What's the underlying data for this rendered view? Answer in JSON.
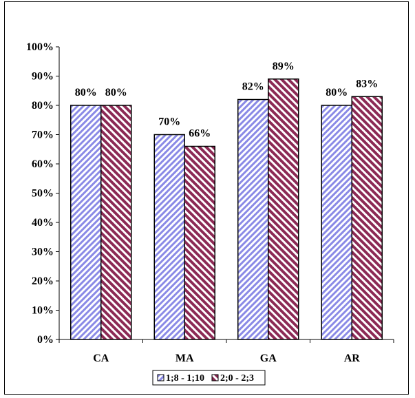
{
  "chart_data": {
    "type": "bar",
    "categories": [
      "CA",
      "MA",
      "GA",
      "AR"
    ],
    "series": [
      {
        "name": "1;8 - 1;10",
        "values": [
          80,
          70,
          82,
          80
        ],
        "labels": [
          "80%",
          "70%",
          "82%",
          "80%"
        ],
        "pattern_color": "#8a8ae6"
      },
      {
        "name": "2;0 - 2;3",
        "values": [
          80,
          66,
          89,
          83
        ],
        "labels": [
          "80%",
          "66%",
          "89%",
          "83%"
        ],
        "pattern_color": "#8c2a55"
      }
    ],
    "ylim": [
      0,
      100
    ],
    "yticks": [
      "0%",
      "10%",
      "20%",
      "30%",
      "40%",
      "50%",
      "60%",
      "70%",
      "80%",
      "90%",
      "100%"
    ],
    "title": "",
    "xlabel": "",
    "ylabel": "",
    "grid": false,
    "legend_position": "bottom"
  }
}
